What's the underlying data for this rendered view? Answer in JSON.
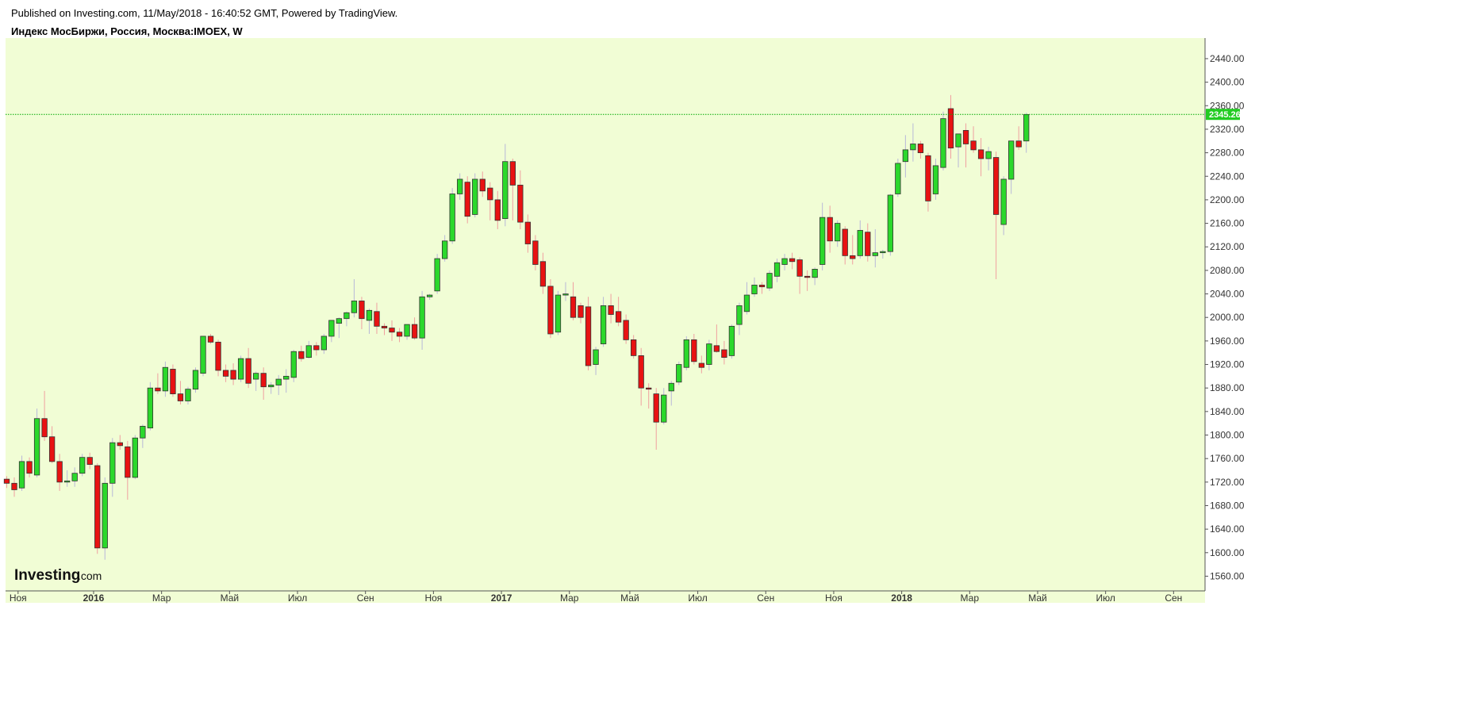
{
  "header": {
    "published": "Published on Investing.com, 11/May/2018 - 16:40:52 GMT, Powered by TradingView.",
    "symbol_title": "Индекс МосБиржи, Россия, Москва:IMOEX, W"
  },
  "logo": {
    "brand": "Investing",
    "suffix": ".com"
  },
  "chart_data": {
    "type": "candlestick",
    "title": "Индекс МосБиржи, Россия, Москва:IMOEX, W",
    "y_ticks": [
      "1560.00",
      "1600.00",
      "1640.00",
      "1680.00",
      "1720.00",
      "1760.00",
      "1800.00",
      "1840.00",
      "1880.00",
      "1920.00",
      "1960.00",
      "2000.00",
      "2040.00",
      "2080.00",
      "2120.00",
      "2160.00",
      "2200.00",
      "2240.00",
      "2280.00",
      "2320.00",
      "2360.00",
      "2400.00",
      "2440.00"
    ],
    "ylim": [
      1535,
      2475
    ],
    "x_ticks": [
      {
        "label": "Ноя",
        "index": 1.5,
        "bold": false
      },
      {
        "label": "2016",
        "index": 11.5,
        "bold": true
      },
      {
        "label": "Мар",
        "index": 20.5,
        "bold": false
      },
      {
        "label": "Май",
        "index": 29.5,
        "bold": false
      },
      {
        "label": "Июл",
        "index": 38.5,
        "bold": false
      },
      {
        "label": "Сен",
        "index": 47.5,
        "bold": false
      },
      {
        "label": "Ноя",
        "index": 56.5,
        "bold": false
      },
      {
        "label": "2017",
        "index": 65.5,
        "bold": true
      },
      {
        "label": "Мар",
        "index": 74.5,
        "bold": false
      },
      {
        "label": "Май",
        "index": 82.5,
        "bold": false
      },
      {
        "label": "Июл",
        "index": 91.5,
        "bold": false
      },
      {
        "label": "Сен",
        "index": 100.5,
        "bold": false
      },
      {
        "label": "Ноя",
        "index": 109.5,
        "bold": false
      },
      {
        "label": "2018",
        "index": 118.5,
        "bold": true
      },
      {
        "label": "Мар",
        "index": 127.5,
        "bold": false
      },
      {
        "label": "Май",
        "index": 136.5,
        "bold": false
      },
      {
        "label": "Июл",
        "index": 145.5,
        "bold": false
      },
      {
        "label": "Сен",
        "index": 154.5,
        "bold": false
      }
    ],
    "last_price": "2345.26",
    "last_value": 2345.26,
    "grid": false,
    "colors": {
      "up": "#2bd82b",
      "down": "#e81212",
      "background": "#f1fdd5",
      "price_line": "#00aa00",
      "axis": "#555555"
    },
    "ohlc": [
      [
        1725,
        1730,
        1710,
        1718
      ],
      [
        1718,
        1728,
        1695,
        1707
      ],
      [
        1710,
        1765,
        1705,
        1755
      ],
      [
        1755,
        1762,
        1728,
        1735
      ],
      [
        1732,
        1845,
        1728,
        1828
      ],
      [
        1828,
        1875,
        1790,
        1797
      ],
      [
        1797,
        1815,
        1752,
        1755
      ],
      [
        1755,
        1768,
        1705,
        1720
      ],
      [
        1720,
        1740,
        1712,
        1722
      ],
      [
        1722,
        1745,
        1712,
        1735
      ],
      [
        1735,
        1768,
        1730,
        1762
      ],
      [
        1762,
        1770,
        1742,
        1750
      ],
      [
        1748,
        1752,
        1598,
        1608
      ],
      [
        1608,
        1728,
        1588,
        1718
      ],
      [
        1718,
        1795,
        1695,
        1787
      ],
      [
        1787,
        1800,
        1775,
        1782
      ],
      [
        1780,
        1790,
        1690,
        1728
      ],
      [
        1728,
        1800,
        1725,
        1795
      ],
      [
        1795,
        1818,
        1778,
        1815
      ],
      [
        1812,
        1890,
        1808,
        1880
      ],
      [
        1880,
        1905,
        1870,
        1875
      ],
      [
        1875,
        1925,
        1865,
        1915
      ],
      [
        1912,
        1920,
        1865,
        1870
      ],
      [
        1870,
        1892,
        1852,
        1858
      ],
      [
        1858,
        1882,
        1852,
        1878
      ],
      [
        1878,
        1915,
        1872,
        1910
      ],
      [
        1905,
        1968,
        1900,
        1968
      ],
      [
        1968,
        1972,
        1955,
        1958
      ],
      [
        1958,
        1962,
        1900,
        1910
      ],
      [
        1910,
        1920,
        1890,
        1900
      ],
      [
        1910,
        1922,
        1885,
        1895
      ],
      [
        1895,
        1935,
        1890,
        1930
      ],
      [
        1930,
        1948,
        1880,
        1888
      ],
      [
        1895,
        1908,
        1875,
        1905
      ],
      [
        1905,
        1915,
        1860,
        1882
      ],
      [
        1882,
        1890,
        1870,
        1885
      ],
      [
        1885,
        1902,
        1868,
        1895
      ],
      [
        1895,
        1912,
        1872,
        1900
      ],
      [
        1898,
        1945,
        1890,
        1942
      ],
      [
        1942,
        1952,
        1925,
        1930
      ],
      [
        1932,
        1960,
        1930,
        1952
      ],
      [
        1952,
        1958,
        1935,
        1945
      ],
      [
        1945,
        1972,
        1938,
        1968
      ],
      [
        1968,
        1990,
        1958,
        1995
      ],
      [
        1990,
        2000,
        1965,
        1998
      ],
      [
        1998,
        2010,
        1985,
        2008
      ],
      [
        2008,
        2065,
        2000,
        2028
      ],
      [
        2028,
        2035,
        1980,
        1998
      ],
      [
        1995,
        2015,
        1972,
        2012
      ],
      [
        2010,
        2025,
        1972,
        1985
      ],
      [
        1985,
        1990,
        1970,
        1982
      ],
      [
        1982,
        1995,
        1960,
        1975
      ],
      [
        1975,
        1982,
        1958,
        1968
      ],
      [
        1968,
        1988,
        1962,
        1988
      ],
      [
        1988,
        2000,
        1962,
        1965
      ],
      [
        1965,
        2045,
        1945,
        2035
      ],
      [
        2035,
        2040,
        2030,
        2038
      ],
      [
        2045,
        2108,
        2040,
        2100
      ],
      [
        2100,
        2140,
        2095,
        2130
      ],
      [
        2130,
        2220,
        2125,
        2210
      ],
      [
        2210,
        2245,
        2200,
        2235
      ],
      [
        2230,
        2240,
        2160,
        2172
      ],
      [
        2175,
        2245,
        2170,
        2235
      ],
      [
        2235,
        2248,
        2205,
        2215
      ],
      [
        2220,
        2230,
        2165,
        2200
      ],
      [
        2200,
        2215,
        2150,
        2165
      ],
      [
        2168,
        2295,
        2155,
        2265
      ],
      [
        2265,
        2270,
        2165,
        2225
      ],
      [
        2225,
        2250,
        2150,
        2162
      ],
      [
        2162,
        2175,
        2110,
        2125
      ],
      [
        2130,
        2140,
        2080,
        2090
      ],
      [
        2095,
        2110,
        2040,
        2053
      ],
      [
        2053,
        2065,
        1965,
        1972
      ],
      [
        1975,
        2045,
        1970,
        2038
      ],
      [
        2038,
        2060,
        2028,
        2040
      ],
      [
        2035,
        2060,
        1995,
        2000
      ],
      [
        2020,
        2025,
        1990,
        2000
      ],
      [
        2018,
        2035,
        1910,
        1918
      ],
      [
        1920,
        1950,
        1902,
        1945
      ],
      [
        1955,
        2035,
        1950,
        2020
      ],
      [
        2020,
        2040,
        1990,
        2005
      ],
      [
        2010,
        2035,
        1985,
        1992
      ],
      [
        1995,
        2005,
        1955,
        1962
      ],
      [
        1962,
        1970,
        1930,
        1935
      ],
      [
        1935,
        1948,
        1850,
        1880
      ],
      [
        1880,
        1888,
        1845,
        1878
      ],
      [
        1870,
        1880,
        1775,
        1822
      ],
      [
        1822,
        1880,
        1818,
        1868
      ],
      [
        1875,
        1892,
        1850,
        1888
      ],
      [
        1890,
        1925,
        1885,
        1920
      ],
      [
        1915,
        1968,
        1910,
        1962
      ],
      [
        1962,
        1972,
        1920,
        1925
      ],
      [
        1922,
        1935,
        1905,
        1915
      ],
      [
        1920,
        1962,
        1910,
        1955
      ],
      [
        1952,
        1988,
        1940,
        1942
      ],
      [
        1945,
        1960,
        1920,
        1932
      ],
      [
        1935,
        1988,
        1930,
        1985
      ],
      [
        1988,
        2025,
        1970,
        2020
      ],
      [
        2010,
        2060,
        2005,
        2038
      ],
      [
        2040,
        2068,
        2035,
        2055
      ],
      [
        2055,
        2060,
        2040,
        2052
      ],
      [
        2050,
        2080,
        2045,
        2075
      ],
      [
        2070,
        2100,
        2060,
        2093
      ],
      [
        2090,
        2108,
        2080,
        2100
      ],
      [
        2100,
        2110,
        2082,
        2095
      ],
      [
        2098,
        2102,
        2040,
        2070
      ],
      [
        2070,
        2080,
        2045,
        2068
      ],
      [
        2068,
        2085,
        2055,
        2082
      ],
      [
        2090,
        2195,
        2080,
        2170
      ],
      [
        2170,
        2190,
        2110,
        2130
      ],
      [
        2130,
        2165,
        2120,
        2160
      ],
      [
        2150,
        2155,
        2090,
        2105
      ],
      [
        2105,
        2140,
        2090,
        2100
      ],
      [
        2105,
        2165,
        2100,
        2148
      ],
      [
        2145,
        2160,
        2095,
        2105
      ],
      [
        2105,
        2150,
        2085,
        2110
      ],
      [
        2110,
        2115,
        2100,
        2112
      ],
      [
        2112,
        2210,
        2105,
        2208
      ],
      [
        2210,
        2270,
        2205,
        2262
      ],
      [
        2265,
        2310,
        2238,
        2285
      ],
      [
        2285,
        2330,
        2265,
        2295
      ],
      [
        2295,
        2300,
        2270,
        2280
      ],
      [
        2275,
        2280,
        2180,
        2198
      ],
      [
        2210,
        2270,
        2200,
        2258
      ],
      [
        2255,
        2350,
        2250,
        2338
      ],
      [
        2355,
        2378,
        2270,
        2288
      ],
      [
        2290,
        2310,
        2255,
        2312
      ],
      [
        2318,
        2330,
        2255,
        2295
      ],
      [
        2300,
        2325,
        2280,
        2285
      ],
      [
        2285,
        2305,
        2240,
        2270
      ],
      [
        2270,
        2290,
        2250,
        2282
      ],
      [
        2272,
        2282,
        2065,
        2175
      ],
      [
        2158,
        2240,
        2140,
        2235
      ],
      [
        2235,
        2300,
        2210,
        2300
      ],
      [
        2300,
        2325,
        2285,
        2290
      ],
      [
        2300,
        2348,
        2280,
        2345
      ]
    ]
  }
}
